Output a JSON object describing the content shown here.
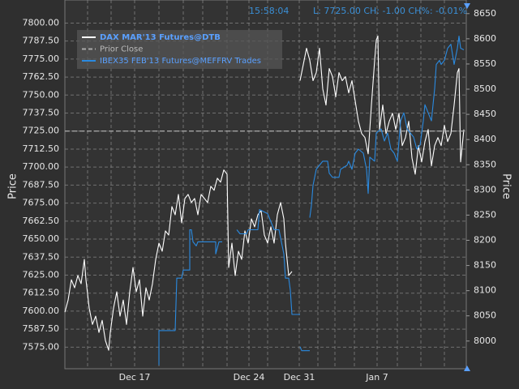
{
  "chart_data": {
    "type": "line",
    "time": "15:58:04",
    "status": "L: 7725.00 CH: -1.00 CH%: -0.01%",
    "ylabel": "Price",
    "y2label": "Price",
    "grid": true,
    "xlim": [
      0,
      99
    ],
    "xticks": [
      {
        "value": 17.2,
        "label": "Dec 17"
      },
      {
        "value": 45.4,
        "label": "Dec 24"
      },
      {
        "value": 57.8,
        "label": "Dec 31"
      },
      {
        "value": 77,
        "label": "Jan 7"
      }
    ],
    "ylim": [
      7560,
      7816
    ],
    "yticks": [
      {
        "value": 7575,
        "label": "7575.00"
      },
      {
        "value": 7587.5,
        "label": "7587.50"
      },
      {
        "value": 7600,
        "label": "7600.00"
      },
      {
        "value": 7612.5,
        "label": "7612.50"
      },
      {
        "value": 7625,
        "label": "7625.00"
      },
      {
        "value": 7637.5,
        "label": "7637.50"
      },
      {
        "value": 7650,
        "label": "7650.00"
      },
      {
        "value": 7662.5,
        "label": "7662.50"
      },
      {
        "value": 7675,
        "label": "7675.00"
      },
      {
        "value": 7687.5,
        "label": "7687.50"
      },
      {
        "value": 7700,
        "label": "7700.00"
      },
      {
        "value": 7712.5,
        "label": "7712.50"
      },
      {
        "value": 7725,
        "label": "7725.00"
      },
      {
        "value": 7737.5,
        "label": "7737.50"
      },
      {
        "value": 7750,
        "label": "7750.00"
      },
      {
        "value": 7762.5,
        "label": "7762.50"
      },
      {
        "value": 7775,
        "label": "7775.00"
      },
      {
        "value": 7787.5,
        "label": "7787.50"
      },
      {
        "value": 7800,
        "label": "7800.00"
      }
    ],
    "y2lim": [
      7945,
      8677
    ],
    "y2ticks": [
      8000,
      8050,
      8100,
      8150,
      8200,
      8250,
      8300,
      8350,
      8400,
      8450,
      8500,
      8550,
      8600,
      8650
    ],
    "series": [
      {
        "name": "DAX MAR'13 Futures@DTB",
        "color": "#ffffff",
        "axis": "y",
        "x": [
          0,
          0.8,
          1.6,
          2.4,
          3.2,
          4,
          4.8,
          5.2,
          6,
          6.8,
          7.6,
          8.4,
          9.2,
          10,
          10.8,
          11.2,
          12,
          12.8,
          13.6,
          14.4,
          15.2,
          16,
          16.8,
          17.6,
          18.4,
          19.2,
          20,
          20.8,
          21.6,
          22.4,
          23.2,
          24,
          24.8,
          25.6,
          26.4,
          27.2,
          28,
          28.8,
          29.6,
          30.4,
          31.2,
          32,
          32.8,
          33.6,
          34.4,
          35.2,
          36,
          36.8,
          37.6,
          38.4,
          39.2,
          40,
          40.4,
          41.2,
          42,
          42.8,
          43.6,
          44.4,
          45.2,
          46,
          46.8,
          47.6,
          48.4,
          49.2,
          50,
          50.8,
          51.6,
          52.4,
          53.2,
          54,
          54.4,
          55.2,
          56,
          null,
          58,
          58.8,
          59.6,
          60.4,
          61.2,
          62,
          62.8,
          63.6,
          64.4,
          65.2,
          66,
          66.8,
          67.6,
          68.4,
          69.2,
          70,
          70.8,
          71.6,
          72.4,
          73.2,
          74,
          74.8,
          75.6,
          76.4,
          76.8,
          77.2,
          77.6,
          78.4,
          79.2,
          80,
          80.8,
          81.6,
          82.4,
          83.2,
          84,
          84.8,
          85.6,
          86.4,
          87.2,
          88,
          88.8,
          89.6,
          90.4,
          91.2,
          92,
          92.8,
          93.6,
          94.4,
          95.2,
          96,
          96.8,
          97.2,
          97.6,
          98.4
        ],
        "values": [
          7599.3,
          7607.7,
          7621.8,
          7616.2,
          7624.7,
          7619,
          7635.9,
          7621.8,
          7602.1,
          7590.8,
          7596.5,
          7585.2,
          7593.6,
          7579.6,
          7572.8,
          7585.2,
          7602.1,
          7613.4,
          7596.5,
          7607.7,
          7590.8,
          7613.4,
          7630.3,
          7613.4,
          7621.8,
          7596.5,
          7616.2,
          7607.7,
          7619,
          7635.9,
          7647.2,
          7641.6,
          7655.7,
          7652.8,
          7672.6,
          7666.9,
          7681,
          7661.3,
          7678.2,
          7681,
          7675.4,
          7678.2,
          7666.9,
          7681,
          7678.2,
          7675.4,
          7686.7,
          7683.9,
          7692.3,
          7689.5,
          7698,
          7695.1,
          7630.3,
          7647.2,
          7624.7,
          7641.6,
          7635.9,
          7655.7,
          7647.2,
          7664.1,
          7658.5,
          7666.9,
          7669.8,
          7652.8,
          7647.2,
          7658.5,
          7647.2,
          7666.9,
          7675.4,
          7664.1,
          7647.2,
          7624.7,
          7627.5,
          null,
          7760,
          7771.2,
          7782.5,
          7774.1,
          7760,
          7765.6,
          7782.5,
          7754.3,
          7743.1,
          7768.4,
          7762.8,
          7748.7,
          7765.6,
          7760,
          7762.8,
          7751.5,
          7760,
          7745.9,
          7731.8,
          7723.3,
          7720.5,
          7709.2,
          7743.1,
          7774.1,
          7788.2,
          7791,
          7726.1,
          7743.1,
          7723.3,
          7731.8,
          7737.4,
          7726.1,
          7737.4,
          7714.9,
          7720.5,
          7731.8,
          7706.4,
          7695.1,
          7714.9,
          7703.6,
          7717.7,
          7726.1,
          7700.8,
          7714.9,
          7720.5,
          7714.9,
          7729,
          7717.7,
          7723.3,
          7743.1,
          7765.6,
          7768.4,
          7703.6,
          7726.1
        ]
      },
      {
        "name": "Prior Close",
        "color": "#aaaaaa",
        "axis": "y",
        "style": "dashed",
        "value": 7725
      },
      {
        "name": "IBEX35 FEB'13 Futures@MEFFRV Trades",
        "color": "#2a8ae0",
        "axis": "y2",
        "x": [
          23.2,
          23.2,
          27.2,
          27.6,
          28.8,
          29.2,
          30.8,
          30.8,
          31.2,
          31.6,
          32.4,
          32.8,
          37.2,
          37.2,
          38,
          38.8,
          null,
          42.4,
          43.2,
          44.8,
          45.2,
          47.6,
          48,
          50,
          51.6,
          52.8,
          54,
          54.4,
          55.2,
          55.6,
          56,
          58,
          null,
          58,
          58.4,
          60.4,
          null,
          60.4,
          60.8,
          61.2,
          62,
          63.6,
          64.8,
          65.2,
          66,
          67.6,
          68,
          69.6,
          70,
          70.8,
          71.6,
          72.4,
          73.6,
          74.4,
          74.8,
          75.2,
          76.4,
          76.8,
          78,
          78.8,
          79.6,
          80.4,
          81.2,
          82,
          82.8,
          83.6,
          84.4,
          85.2,
          86,
          86.8,
          87.6,
          88.4,
          88.8,
          89.6,
          90.4,
          91.2,
          91.6,
          92.4,
          92.8,
          93.6,
          94.4,
          95.2,
          96,
          96.8,
          97.2,
          97.6,
          98.4
        ],
        "values": [
          7952,
          8020.8,
          8020.8,
          8124.9,
          8124.9,
          8140.9,
          8140.9,
          8220.9,
          8220.9,
          8196.9,
          8188.9,
          8196.9,
          8196.9,
          8172.9,
          8196.9,
          8196.9,
          null,
          8220.9,
          8212.9,
          8212.9,
          8220.9,
          8220.9,
          8261,
          8253,
          8220.9,
          8220.9,
          8172.9,
          8124.9,
          8124.9,
          8100.9,
          8052.8,
          8052.8,
          null,
          7988.8,
          7980.8,
          7980.8,
          null,
          8244.9,
          8269,
          8309,
          8341,
          8357,
          8357,
          8333,
          8325,
          8325,
          8341,
          8349,
          8357,
          8341,
          8373,
          8381,
          8373,
          8341,
          8293,
          8365,
          8357,
          8413,
          8421.1,
          8397,
          8413,
          8381,
          8373,
          8357,
          8437.1,
          8453.1,
          8421.1,
          8413,
          8405,
          8381,
          8389,
          8437.1,
          8469.1,
          8453.1,
          8437.1,
          8501.1,
          8549.1,
          8557.1,
          8549.1,
          8557.1,
          8581.2,
          8589.2,
          8549.1,
          8581.2,
          8605.2,
          8581.2,
          8578
        ]
      }
    ]
  }
}
